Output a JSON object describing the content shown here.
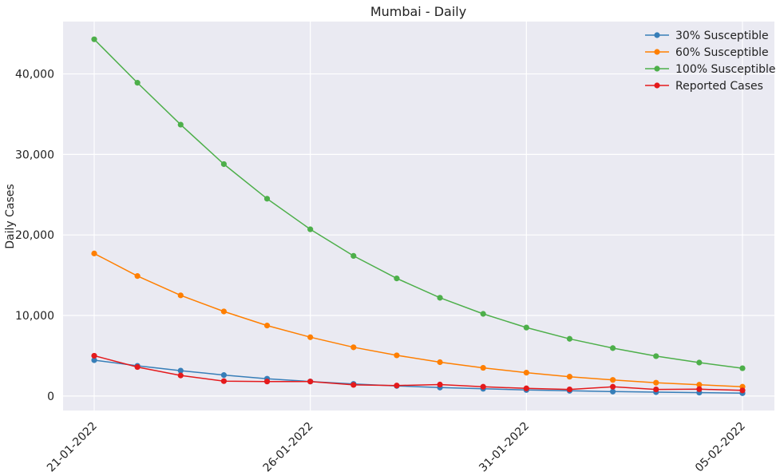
{
  "chart_data": {
    "type": "line",
    "title": "Mumbai - Daily",
    "xlabel": "",
    "ylabel": "Daily Cases",
    "x": [
      "21-01-2022",
      "22-01-2022",
      "23-01-2022",
      "24-01-2022",
      "25-01-2022",
      "26-01-2022",
      "27-01-2022",
      "28-01-2022",
      "29-01-2022",
      "30-01-2022",
      "31-01-2022",
      "01-02-2022",
      "02-02-2022",
      "03-02-2022",
      "04-02-2022",
      "05-02-2022"
    ],
    "x_ticks": [
      "21-01-2022",
      "26-01-2022",
      "31-01-2022",
      "05-02-2022"
    ],
    "y_ticks": [
      0,
      10000,
      20000,
      30000,
      40000
    ],
    "y_tick_labels": [
      "0",
      "10,000",
      "20,000",
      "30,000",
      "40,000"
    ],
    "ylim": [
      -1800,
      46500
    ],
    "grid": true,
    "legend_position": "top-right",
    "series": [
      {
        "name": "30% Susceptible",
        "color": "#377eb8",
        "values": [
          4450,
          3750,
          3150,
          2600,
          2150,
          1800,
          1500,
          1250,
          1050,
          900,
          750,
          650,
          550,
          480,
          420,
          350
        ]
      },
      {
        "name": "60% Susceptible",
        "color": "#ff7f00",
        "values": [
          17700,
          14900,
          12500,
          10500,
          8750,
          7300,
          6050,
          5050,
          4200,
          3500,
          2900,
          2400,
          2000,
          1650,
          1400,
          1150
        ]
      },
      {
        "name": "100% Susceptible",
        "color": "#4daf4a",
        "values": [
          44300,
          38900,
          33700,
          28800,
          24500,
          20700,
          17400,
          14600,
          12200,
          10200,
          8500,
          7100,
          5950,
          4950,
          4150,
          3450
        ]
      },
      {
        "name": "Reported Cases",
        "color": "#e41a1c",
        "values": [
          5000,
          3600,
          2550,
          1850,
          1800,
          1800,
          1380,
          1300,
          1420,
          1150,
          950,
          820,
          1150,
          820,
          850,
          700
        ]
      }
    ]
  }
}
